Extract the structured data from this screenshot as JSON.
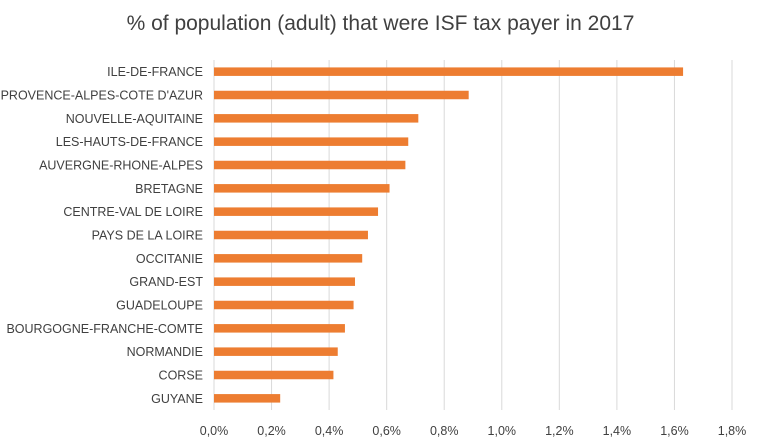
{
  "chart_data": {
    "type": "bar",
    "orientation": "horizontal",
    "title": "% of population (adult) that were ISF tax payer in 2017",
    "categories": [
      "ILE-DE-FRANCE",
      "PROVENCE-ALPES-COTE D'AZUR",
      "NOUVELLE-AQUITAINE",
      "LES-HAUTS-DE-FRANCE",
      "AUVERGNE-RHONE-ALPES",
      "BRETAGNE",
      "CENTRE-VAL DE LOIRE",
      "PAYS DE LA LOIRE",
      "OCCITANIE",
      "GRAND-EST",
      "GUADELOUPE",
      "BOURGOGNE-FRANCHE-COMTE",
      "NORMANDIE",
      "CORSE",
      "GUYANE"
    ],
    "values": [
      1.63,
      0.885,
      0.71,
      0.675,
      0.665,
      0.61,
      0.57,
      0.535,
      0.515,
      0.49,
      0.485,
      0.455,
      0.43,
      0.415,
      0.23
    ],
    "xlim": [
      0,
      1.8
    ],
    "xticks": [
      0,
      0.2,
      0.4,
      0.6,
      0.8,
      1.0,
      1.2,
      1.4,
      1.6,
      1.8
    ],
    "xtick_labels": [
      "0,0%",
      "0,2%",
      "0,4%",
      "0,6%",
      "0,8%",
      "1,0%",
      "1,2%",
      "1,4%",
      "1,6%",
      "1,8%"
    ],
    "bar_color": "#ED7D31",
    "grid_color": "#D9D9D9",
    "grid": true,
    "legend": false
  }
}
